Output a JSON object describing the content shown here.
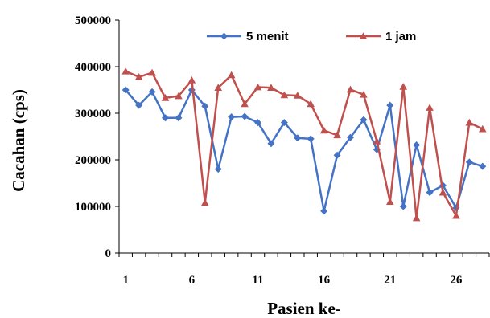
{
  "chart_data": {
    "type": "line",
    "xlabel": "Pasien ke-",
    "ylabel": "Cacahan (cps)",
    "ylim": [
      0,
      500000
    ],
    "y_ticks": [
      "0",
      "100000",
      "200000",
      "300000",
      "400000",
      "500000"
    ],
    "x_ticks": [
      "1",
      "6",
      "11",
      "16",
      "21",
      "26"
    ],
    "x": [
      1,
      2,
      3,
      4,
      5,
      6,
      7,
      8,
      9,
      10,
      11,
      12,
      13,
      14,
      15,
      16,
      17,
      18,
      19,
      20,
      21,
      22,
      23,
      24,
      25,
      26,
      27,
      28
    ],
    "legend_position": "top",
    "grid": false,
    "series": [
      {
        "name": "5 menit",
        "color": "#4472C4",
        "marker": "diamond",
        "values": [
          350000,
          317000,
          346000,
          290000,
          290000,
          350000,
          315000,
          180000,
          292000,
          293000,
          280000,
          235000,
          280000,
          247000,
          245000,
          90000,
          210000,
          248000,
          286000,
          222000,
          317000,
          100000,
          232000,
          130000,
          145000,
          97000,
          195000,
          186000
        ]
      },
      {
        "name": "1 jam",
        "color": "#C0504D",
        "marker": "triangle",
        "values": [
          390000,
          378000,
          387000,
          333000,
          337000,
          371000,
          108000,
          355000,
          382000,
          320000,
          356000,
          355000,
          339000,
          338000,
          320000,
          263000,
          253000,
          351000,
          340000,
          240000,
          110000,
          357000,
          75000,
          312000,
          130000,
          80000,
          280000,
          266000
        ]
      }
    ]
  }
}
